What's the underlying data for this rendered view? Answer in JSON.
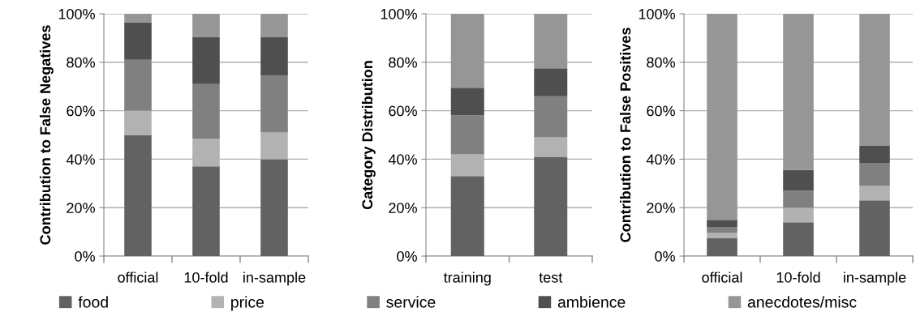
{
  "chart_data": [
    {
      "type": "bar",
      "stacked": true,
      "ylabel": "Contribution to False Negatives",
      "categories": [
        "official",
        "10-fold",
        "in-sample"
      ],
      "ylim": [
        0,
        100
      ],
      "yticks": [
        {
          "value": 0,
          "label": "0%"
        },
        {
          "value": 20,
          "label": "20%"
        },
        {
          "value": 40,
          "label": "40%"
        },
        {
          "value": 60,
          "label": "60%"
        },
        {
          "value": 80,
          "label": "80%"
        },
        {
          "value": 100,
          "label": "100%"
        }
      ],
      "grid": "y",
      "legend": "bottom",
      "series": [
        {
          "name": "food",
          "color": "#626262",
          "values": [
            50,
            37,
            40
          ]
        },
        {
          "name": "price",
          "color": "#b2b2b2",
          "values": [
            10,
            11.5,
            11
          ]
        },
        {
          "name": "service",
          "color": "#808080",
          "values": [
            21,
            22.5,
            23.5
          ]
        },
        {
          "name": "ambience",
          "color": "#4f4f4f",
          "values": [
            15.5,
            19.5,
            16
          ]
        },
        {
          "name": "anecdotes/misc",
          "color": "#969696",
          "values": [
            3.5,
            9.5,
            9.5
          ]
        }
      ]
    },
    {
      "type": "bar",
      "stacked": true,
      "ylabel": "Category Distribution",
      "categories": [
        "training",
        "test"
      ],
      "ylim": [
        0,
        100
      ],
      "yticks": [
        {
          "value": 0,
          "label": "0%"
        },
        {
          "value": 20,
          "label": "20%"
        },
        {
          "value": 40,
          "label": "40%"
        },
        {
          "value": 60,
          "label": "60%"
        },
        {
          "value": 80,
          "label": "80%"
        },
        {
          "value": 100,
          "label": "100%"
        }
      ],
      "grid": "y",
      "series": [
        {
          "color": "#626262",
          "values": [
            33,
            41
          ]
        },
        {
          "color": "#b2b2b2",
          "values": [
            9,
            8
          ]
        },
        {
          "color": "#808080",
          "values": [
            16,
            17
          ]
        },
        {
          "color": "#4f4f4f",
          "values": [
            11.5,
            11.5
          ]
        },
        {
          "color": "#969696",
          "values": [
            30.5,
            22.5
          ]
        }
      ]
    },
    {
      "type": "bar",
      "stacked": true,
      "ylabel": "Contribution to False Positives",
      "categories": [
        "official",
        "10-fold",
        "in-sample"
      ],
      "ylim": [
        0,
        100
      ],
      "yticks": [
        {
          "value": 0,
          "label": "0%"
        },
        {
          "value": 20,
          "label": "20%"
        },
        {
          "value": 40,
          "label": "40%"
        },
        {
          "value": 60,
          "label": "60%"
        },
        {
          "value": 80,
          "label": "80%"
        },
        {
          "value": 100,
          "label": "100%"
        }
      ],
      "grid": "y",
      "series": [
        {
          "color": "#626262",
          "values": [
            7.5,
            14,
            23
          ]
        },
        {
          "color": "#b2b2b2",
          "values": [
            2,
            6,
            6
          ]
        },
        {
          "color": "#808080",
          "values": [
            2.5,
            7,
            9.5
          ]
        },
        {
          "color": "#4f4f4f",
          "values": [
            3,
            8.5,
            7
          ]
        },
        {
          "color": "#969696",
          "values": [
            85,
            64.5,
            54.5
          ]
        }
      ]
    }
  ]
}
